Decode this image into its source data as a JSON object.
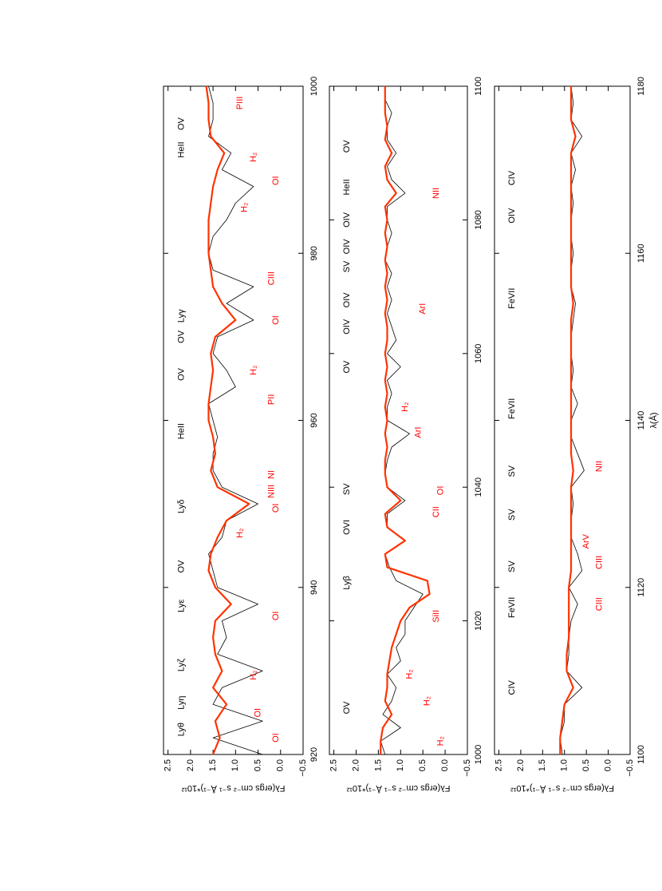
{
  "chart_data": [
    {
      "type": "line",
      "ylabel": "Fλ(ergs cm⁻² s⁻¹ Å⁻¹)*10¹²",
      "xlim": [
        920,
        1000
      ],
      "xticks": [
        920,
        940,
        960,
        980,
        1000
      ],
      "ylim": [
        -0.5,
        2.6
      ],
      "yticks": [
        {
          "value": -0.5,
          "label": "−0.5"
        },
        {
          "value": 0,
          "label": "0.0"
        },
        0.5,
        {
          "value": 1,
          "label": "1.0"
        },
        1.5,
        {
          "value": 2,
          "label": "2.0"
        },
        2.5
      ],
      "x": [
        920,
        922,
        924,
        926,
        928,
        930,
        932,
        934,
        936,
        938,
        940,
        942,
        944,
        946,
        948,
        950,
        952,
        954,
        956,
        958,
        960,
        962,
        964,
        966,
        968,
        970,
        972,
        974,
        976,
        978,
        980,
        982,
        984,
        986,
        988,
        990,
        992,
        994,
        996,
        998,
        1000
      ],
      "series": [
        {
          "color": "#000000",
          "values": [
            0.4,
            1.5,
            0.4,
            1.5,
            1.3,
            0.4,
            1.4,
            1.2,
            1.3,
            0.5,
            1.4,
            1.5,
            1.6,
            1.3,
            1.2,
            0.5,
            1.3,
            1.5,
            1.5,
            1.4,
            1.5,
            1.6,
            1.0,
            1.2,
            1.5,
            1.4,
            0.6,
            1.2,
            0.6,
            1.5,
            1.6,
            1.5,
            1.2,
            1.0,
            0.6,
            1.3,
            1.1,
            1.6,
            1.5,
            1.5,
            1.6
          ]
        },
        {
          "color": "#ff3300",
          "values": [
            1.5,
            1.35,
            1.45,
            1.2,
            1.5,
            1.3,
            1.45,
            1.5,
            1.45,
            1.1,
            1.45,
            1.6,
            1.55,
            1.4,
            1.2,
            0.7,
            1.4,
            1.55,
            1.45,
            1.5,
            1.6,
            1.6,
            1.55,
            1.5,
            1.55,
            1.45,
            1.0,
            1.3,
            1.5,
            1.55,
            1.6,
            1.6,
            1.6,
            1.55,
            1.5,
            1.4,
            1.25,
            1.55,
            1.6,
            1.6,
            1.65
          ]
        }
      ],
      "annotations": [
        {
          "text": "Lyθ",
          "x": 923,
          "y": 2.2,
          "color": "#000000"
        },
        {
          "text": "Lyη",
          "x": 926.2,
          "y": 2.2,
          "color": "#000000"
        },
        {
          "text": "Lyζ",
          "x": 930.7,
          "y": 2.2,
          "color": "#000000"
        },
        {
          "text": "Lyε",
          "x": 937.8,
          "y": 2.2,
          "color": "#000000"
        },
        {
          "text": "OV",
          "x": 942.5,
          "y": 2.2,
          "color": "#000000"
        },
        {
          "text": "Lyδ",
          "x": 949.7,
          "y": 2.2,
          "color": "#000000"
        },
        {
          "text": "HeII",
          "x": 958.7,
          "y": 2.2,
          "color": "#000000"
        },
        {
          "text": "OV",
          "x": 965.5,
          "y": 2.2,
          "color": "#000000"
        },
        {
          "text": "OV",
          "x": 970,
          "y": 2.2,
          "color": "#000000"
        },
        {
          "text": "Lyγ",
          "x": 972.5,
          "y": 2.2,
          "color": "#000000"
        },
        {
          "text": "HeII",
          "x": 992.4,
          "y": 2.2,
          "color": "#000000"
        },
        {
          "text": "OV",
          "x": 995.5,
          "y": 2.2,
          "color": "#000000"
        },
        {
          "text": "OI",
          "x": 922,
          "y": 0.1,
          "color": "#ff0000"
        },
        {
          "text": "OI",
          "x": 925,
          "y": 0.5,
          "color": "#ff0000"
        },
        {
          "text": "H₂",
          "x": 929.5,
          "y": 0.6,
          "color": "#ff0000"
        },
        {
          "text": "OI",
          "x": 936.6,
          "y": 0.1,
          "color": "#ff0000"
        },
        {
          "text": "H₂",
          "x": 946.5,
          "y": 0.9,
          "color": "#ff0000"
        },
        {
          "text": "OI",
          "x": 949.5,
          "y": 0.1,
          "color": "#ff0000"
        },
        {
          "text": "NI",
          "x": 953.5,
          "y": 0.2,
          "color": "#ff0000"
        },
        {
          "text": "NIII",
          "x": 951.5,
          "y": 0.2,
          "color": "#ff0000"
        },
        {
          "text": "PII",
          "x": 962.5,
          "y": 0.2,
          "color": "#ff0000"
        },
        {
          "text": "H₂",
          "x": 966,
          "y": 0.6,
          "color": "#ff0000"
        },
        {
          "text": "OI",
          "x": 972,
          "y": 0.1,
          "color": "#ff0000"
        },
        {
          "text": "CIII",
          "x": 977,
          "y": 0.2,
          "color": "#ff0000"
        },
        {
          "text": "H₂",
          "x": 985.5,
          "y": 0.8,
          "color": "#ff0000"
        },
        {
          "text": "OI",
          "x": 988.7,
          "y": 0.1,
          "color": "#ff0000"
        },
        {
          "text": "H₂",
          "x": 991.5,
          "y": 0.6,
          "color": "#ff0000"
        },
        {
          "text": "PIII",
          "x": 998,
          "y": 0.9,
          "color": "#ff0000"
        }
      ]
    },
    {
      "type": "line",
      "ylabel": "Fλ(ergs cm⁻² s⁻¹ Å⁻¹)*10¹²",
      "xlim": [
        1000,
        1100
      ],
      "xticks": [
        1000,
        1020,
        1040,
        1060,
        1080,
        1100
      ],
      "ylim": [
        -0.5,
        2.6
      ],
      "yticks": [
        {
          "value": -0.5,
          "label": "−0.5"
        },
        {
          "value": 0,
          "label": "0.0"
        },
        0.5,
        {
          "value": 1,
          "label": "1.0"
        },
        1.5,
        {
          "value": 2,
          "label": "2.0"
        },
        2.5
      ],
      "x": [
        1000,
        1002,
        1004,
        1006,
        1008,
        1010,
        1012,
        1014,
        1016,
        1018,
        1020,
        1022,
        1024,
        1026,
        1028,
        1030,
        1032,
        1034,
        1036,
        1038,
        1040,
        1042,
        1044,
        1046,
        1048,
        1050,
        1052,
        1054,
        1056,
        1058,
        1060,
        1062,
        1064,
        1066,
        1068,
        1070,
        1072,
        1074,
        1076,
        1078,
        1080,
        1082,
        1084,
        1086,
        1088,
        1090,
        1092,
        1094,
        1096,
        1098,
        1100
      ],
      "series": [
        {
          "color": "#000000",
          "values": [
            1.35,
            1.45,
            1.0,
            1.4,
            1.2,
            1.1,
            1.3,
            1.0,
            1.1,
            0.9,
            0.9,
            0.7,
            0.5,
            1.1,
            1.25,
            1.35,
            0.9,
            1.3,
            1.3,
            0.9,
            1.3,
            1.35,
            1.3,
            1.2,
            0.8,
            1.3,
            1.3,
            1.2,
            1.3,
            1.0,
            1.3,
            1.1,
            1.2,
            1.3,
            1.2,
            1.3,
            1.2,
            1.35,
            1.3,
            1.2,
            1.3,
            1.3,
            0.9,
            1.2,
            1.3,
            1.1,
            1.3,
            1.3,
            1.2,
            1.35,
            1.35
          ]
        },
        {
          "color": "#ff3300",
          "values": [
            1.45,
            1.45,
            1.4,
            1.2,
            1.35,
            1.3,
            1.3,
            1.25,
            1.2,
            1.1,
            1.0,
            0.8,
            0.35,
            0.4,
            1.3,
            1.35,
            0.9,
            1.3,
            1.35,
            1.0,
            1.3,
            1.35,
            1.35,
            1.3,
            1.35,
            1.3,
            1.35,
            1.3,
            1.35,
            1.3,
            1.35,
            1.3,
            1.3,
            1.35,
            1.3,
            1.35,
            1.3,
            1.35,
            1.3,
            1.35,
            1.3,
            1.35,
            1.1,
            1.3,
            1.35,
            1.2,
            1.35,
            1.3,
            1.35,
            1.35,
            1.35
          ]
        }
      ],
      "annotations": [
        {
          "text": "OV",
          "x": 1007,
          "y": 2.2,
          "color": "#000000"
        },
        {
          "text": "Lyβ",
          "x": 1025.7,
          "y": 2.2,
          "color": "#000000"
        },
        {
          "text": "OVI",
          "x": 1034,
          "y": 2.2,
          "color": "#000000"
        },
        {
          "text": "SV",
          "x": 1039.7,
          "y": 2.2,
          "color": "#000000"
        },
        {
          "text": "OV",
          "x": 1058,
          "y": 2.2,
          "color": "#000000"
        },
        {
          "text": "OIV",
          "x": 1064,
          "y": 2.2,
          "color": "#000000"
        },
        {
          "text": "OIV",
          "x": 1068,
          "y": 2.2,
          "color": "#000000"
        },
        {
          "text": "SV",
          "x": 1073,
          "y": 2.2,
          "color": "#000000"
        },
        {
          "text": "OIV",
          "x": 1076,
          "y": 2.2,
          "color": "#000000"
        },
        {
          "text": "OIV",
          "x": 1080,
          "y": 2.2,
          "color": "#000000"
        },
        {
          "text": "HeII",
          "x": 1084.9,
          "y": 2.2,
          "color": "#000000"
        },
        {
          "text": "OV",
          "x": 1091,
          "y": 2.2,
          "color": "#000000"
        },
        {
          "text": "H₂",
          "x": 1002,
          "y": 0.1,
          "color": "#ff0000"
        },
        {
          "text": "H₂",
          "x": 1008,
          "y": 0.4,
          "color": "#ff0000"
        },
        {
          "text": "H₂",
          "x": 1012,
          "y": 0.8,
          "color": "#ff0000"
        },
        {
          "text": "SiII",
          "x": 1020.7,
          "y": 0.2,
          "color": "#ff0000"
        },
        {
          "text": "CII",
          "x": 1036.3,
          "y": 0.2,
          "color": "#ff0000"
        },
        {
          "text": "OI",
          "x": 1039.5,
          "y": 0.1,
          "color": "#ff0000"
        },
        {
          "text": "ArI",
          "x": 1048.2,
          "y": 0.6,
          "color": "#ff0000"
        },
        {
          "text": "H₂",
          "x": 1052,
          "y": 0.9,
          "color": "#ff0000"
        },
        {
          "text": "ArI",
          "x": 1066.7,
          "y": 0.5,
          "color": "#ff0000"
        },
        {
          "text": "NII",
          "x": 1084,
          "y": 0.2,
          "color": "#ff0000"
        }
      ]
    },
    {
      "type": "line",
      "xlabel": "λ(Å)",
      "ylabel": "Fλ(ergs cm⁻² s⁻¹ Å⁻¹)*10¹²",
      "xlim": [
        1100,
        1180
      ],
      "xticks": [
        1100,
        1120,
        1140,
        1160,
        1180
      ],
      "ylim": [
        -0.5,
        2.6
      ],
      "yticks": [
        {
          "value": -0.5,
          "label": "−0.5"
        },
        {
          "value": 0,
          "label": "0.0"
        },
        0.5,
        {
          "value": 1,
          "label": "1.0"
        },
        1.5,
        {
          "value": 2,
          "label": "2.0"
        },
        2.5
      ],
      "x": [
        1100,
        1102,
        1104,
        1106,
        1108,
        1110,
        1112,
        1114,
        1116,
        1118,
        1120,
        1122,
        1124,
        1126,
        1128,
        1130,
        1132,
        1134,
        1136,
        1138,
        1140,
        1142,
        1144,
        1146,
        1148,
        1150,
        1152,
        1154,
        1156,
        1158,
        1160,
        1162,
        1164,
        1166,
        1168,
        1170,
        1172,
        1174,
        1176,
        1178,
        1180
      ],
      "series": [
        {
          "color": "#000000",
          "values": [
            1.05,
            1.1,
            1.0,
            1.0,
            0.6,
            0.95,
            0.9,
            0.9,
            0.85,
            0.7,
            0.9,
            0.6,
            0.7,
            0.85,
            0.85,
            0.8,
            0.85,
            0.55,
            0.7,
            0.85,
            0.85,
            0.7,
            0.85,
            0.8,
            0.85,
            0.85,
            0.8,
            0.75,
            0.85,
            0.85,
            0.8,
            0.85,
            0.85,
            0.8,
            0.85,
            0.75,
            0.85,
            0.6,
            0.85,
            0.8,
            0.85
          ]
        },
        {
          "color": "#ff3300",
          "values": [
            1.1,
            1.1,
            1.05,
            1.0,
            0.8,
            0.95,
            0.95,
            0.9,
            0.9,
            0.9,
            0.9,
            0.85,
            0.85,
            0.85,
            0.85,
            0.85,
            0.85,
            0.8,
            0.85,
            0.85,
            0.85,
            0.85,
            0.85,
            0.85,
            0.85,
            0.85,
            0.85,
            0.8,
            0.85,
            0.85,
            0.85,
            0.85,
            0.85,
            0.85,
            0.85,
            0.85,
            0.85,
            0.75,
            0.85,
            0.85,
            0.85
          ]
        }
      ],
      "annotations": [
        {
          "text": "CIV",
          "x": 1108,
          "y": 2.2,
          "color": "#000000"
        },
        {
          "text": "FeVII",
          "x": 1117.6,
          "y": 2.2,
          "color": "#000000"
        },
        {
          "text": "SV",
          "x": 1122.5,
          "y": 2.2,
          "color": "#000000"
        },
        {
          "text": "SV",
          "x": 1128.7,
          "y": 2.2,
          "color": "#000000"
        },
        {
          "text": "SV",
          "x": 1133.9,
          "y": 2.2,
          "color": "#000000"
        },
        {
          "text": "FeVII",
          "x": 1141.4,
          "y": 2.2,
          "color": "#000000"
        },
        {
          "text": "FeVII",
          "x": 1154.6,
          "y": 2.2,
          "color": "#000000"
        },
        {
          "text": "OIV",
          "x": 1164.5,
          "y": 2.2,
          "color": "#000000"
        },
        {
          "text": "CIV",
          "x": 1169,
          "y": 2.2,
          "color": "#000000"
        },
        {
          "text": "CIII",
          "x": 1118,
          "y": 0.2,
          "color": "#ff0000"
        },
        {
          "text": "CIII",
          "x": 1123,
          "y": 0.2,
          "color": "#ff0000"
        },
        {
          "text": "ArV",
          "x": 1125.5,
          "y": 0.5,
          "color": "#ff0000"
        },
        {
          "text": "NII",
          "x": 1134.5,
          "y": 0.2,
          "color": "#ff0000"
        }
      ]
    }
  ]
}
